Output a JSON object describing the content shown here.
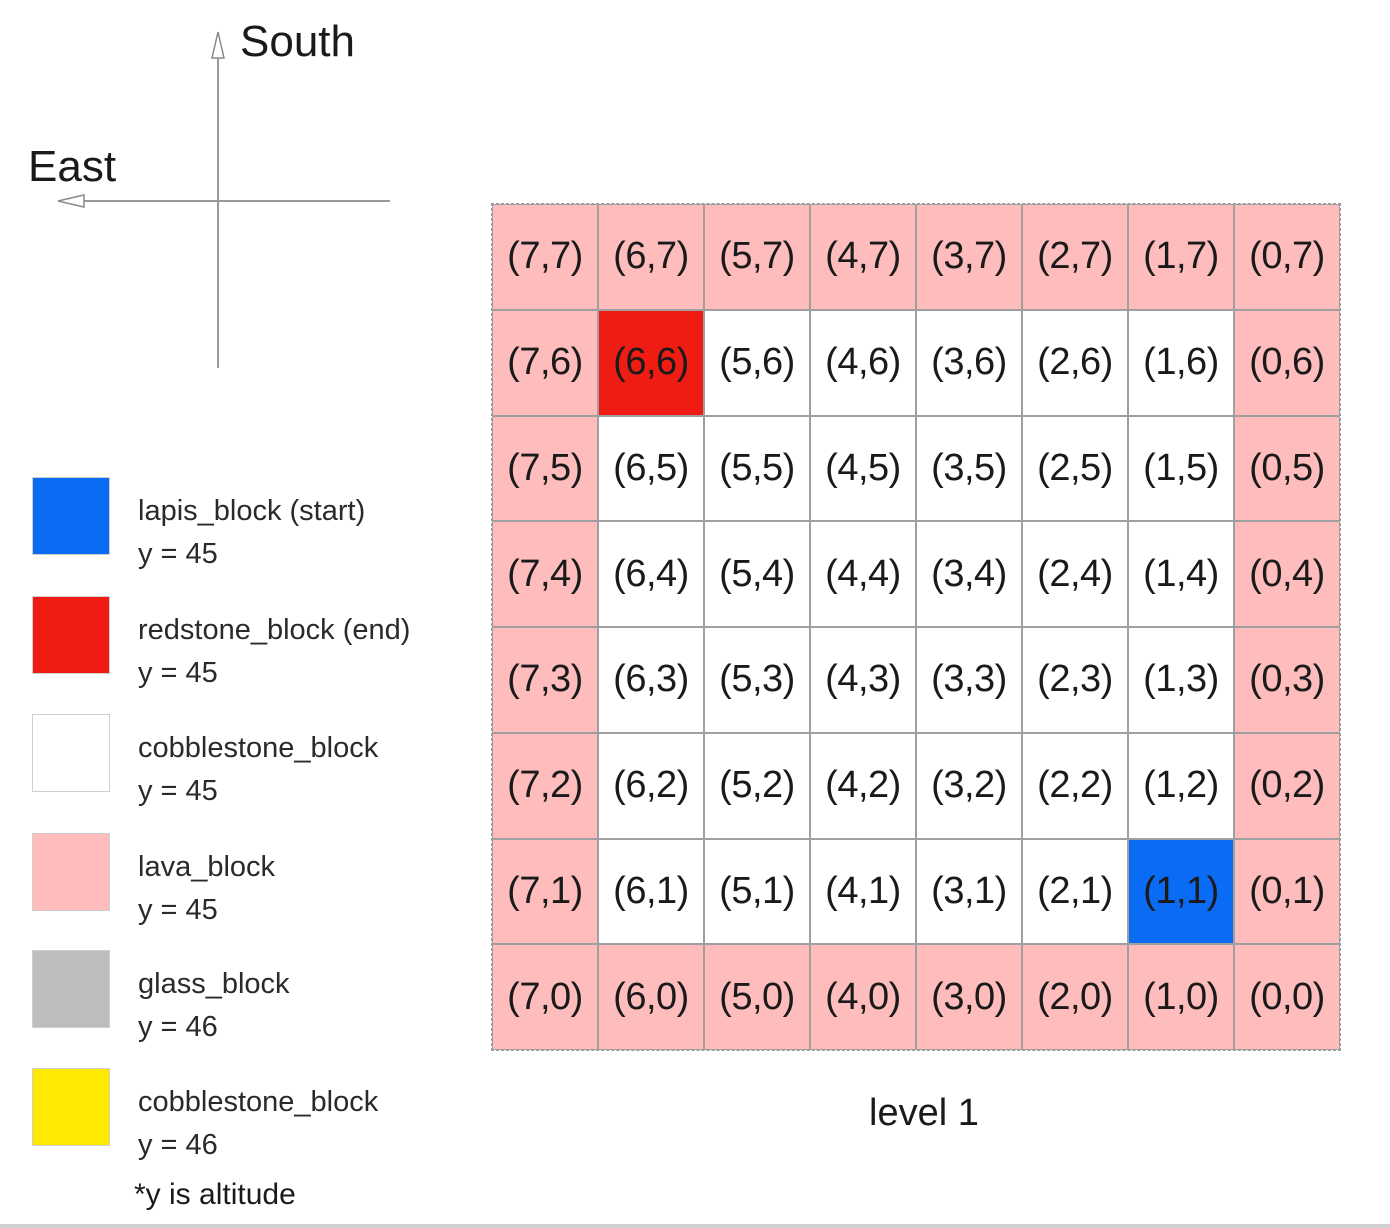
{
  "compass": {
    "south_label": "South",
    "east_label": "East"
  },
  "legend": {
    "items": [
      {
        "name": "lapis_block (start)",
        "altitude": "y = 45",
        "color": "#0a6cf5"
      },
      {
        "name": "redstone_block (end)",
        "altitude": "y = 45",
        "color": "#ee1c12"
      },
      {
        "name": "cobblestone_block",
        "altitude": "y = 45",
        "color": "#ffffff"
      },
      {
        "name": "lava_block",
        "altitude": "y = 45",
        "color": "#ffbcbd"
      },
      {
        "name": "glass_block",
        "altitude": "y = 46",
        "color": "#bdbdbd"
      },
      {
        "name": "cobblestone_block",
        "altitude": "y = 46",
        "color": "#ffe900"
      }
    ],
    "note": "*y is altitude"
  },
  "grid": {
    "caption": "level 1",
    "colors": {
      "lava": "#ffbcbd",
      "cobblestone": "#ffffff",
      "lapis": "#0a6cf5",
      "redstone": "#ee1c12"
    },
    "rows": [
      [
        {
          "label": "(7,7)",
          "block": "lava"
        },
        {
          "label": "(6,7)",
          "block": "lava"
        },
        {
          "label": "(5,7)",
          "block": "lava"
        },
        {
          "label": "(4,7)",
          "block": "lava"
        },
        {
          "label": "(3,7)",
          "block": "lava"
        },
        {
          "label": "(2,7)",
          "block": "lava"
        },
        {
          "label": "(1,7)",
          "block": "lava"
        },
        {
          "label": "(0,7)",
          "block": "lava"
        }
      ],
      [
        {
          "label": "(7,6)",
          "block": "lava"
        },
        {
          "label": "(6,6)",
          "block": "redstone"
        },
        {
          "label": "(5,6)",
          "block": "cobblestone"
        },
        {
          "label": "(4,6)",
          "block": "cobblestone"
        },
        {
          "label": "(3,6)",
          "block": "cobblestone"
        },
        {
          "label": "(2,6)",
          "block": "cobblestone"
        },
        {
          "label": "(1,6)",
          "block": "cobblestone"
        },
        {
          "label": "(0,6)",
          "block": "lava"
        }
      ],
      [
        {
          "label": "(7,5)",
          "block": "lava"
        },
        {
          "label": "(6,5)",
          "block": "cobblestone"
        },
        {
          "label": "(5,5)",
          "block": "cobblestone"
        },
        {
          "label": "(4,5)",
          "block": "cobblestone"
        },
        {
          "label": "(3,5)",
          "block": "cobblestone"
        },
        {
          "label": "(2,5)",
          "block": "cobblestone"
        },
        {
          "label": "(1,5)",
          "block": "cobblestone"
        },
        {
          "label": "(0,5)",
          "block": "lava"
        }
      ],
      [
        {
          "label": "(7,4)",
          "block": "lava"
        },
        {
          "label": "(6,4)",
          "block": "cobblestone"
        },
        {
          "label": "(5,4)",
          "block": "cobblestone"
        },
        {
          "label": "(4,4)",
          "block": "cobblestone"
        },
        {
          "label": "(3,4)",
          "block": "cobblestone"
        },
        {
          "label": "(2,4)",
          "block": "cobblestone"
        },
        {
          "label": "(1,4)",
          "block": "cobblestone"
        },
        {
          "label": "(0,4)",
          "block": "lava"
        }
      ],
      [
        {
          "label": "(7,3)",
          "block": "lava"
        },
        {
          "label": "(6,3)",
          "block": "cobblestone"
        },
        {
          "label": "(5,3)",
          "block": "cobblestone"
        },
        {
          "label": "(4,3)",
          "block": "cobblestone"
        },
        {
          "label": "(3,3)",
          "block": "cobblestone"
        },
        {
          "label": "(2,3)",
          "block": "cobblestone"
        },
        {
          "label": "(1,3)",
          "block": "cobblestone"
        },
        {
          "label": "(0,3)",
          "block": "lava"
        }
      ],
      [
        {
          "label": "(7,2)",
          "block": "lava"
        },
        {
          "label": "(6,2)",
          "block": "cobblestone"
        },
        {
          "label": "(5,2)",
          "block": "cobblestone"
        },
        {
          "label": "(4,2)",
          "block": "cobblestone"
        },
        {
          "label": "(3,2)",
          "block": "cobblestone"
        },
        {
          "label": "(2,2)",
          "block": "cobblestone"
        },
        {
          "label": "(1,2)",
          "block": "cobblestone"
        },
        {
          "label": "(0,2)",
          "block": "lava"
        }
      ],
      [
        {
          "label": "(7,1)",
          "block": "lava"
        },
        {
          "label": "(6,1)",
          "block": "cobblestone"
        },
        {
          "label": "(5,1)",
          "block": "cobblestone"
        },
        {
          "label": "(4,1)",
          "block": "cobblestone"
        },
        {
          "label": "(3,1)",
          "block": "cobblestone"
        },
        {
          "label": "(2,1)",
          "block": "cobblestone"
        },
        {
          "label": "(1,1)",
          "block": "lapis"
        },
        {
          "label": "(0,1)",
          "block": "lava"
        }
      ],
      [
        {
          "label": "(7,0)",
          "block": "lava"
        },
        {
          "label": "(6,0)",
          "block": "lava"
        },
        {
          "label": "(5,0)",
          "block": "lava"
        },
        {
          "label": "(4,0)",
          "block": "lava"
        },
        {
          "label": "(3,0)",
          "block": "lava"
        },
        {
          "label": "(2,0)",
          "block": "lava"
        },
        {
          "label": "(1,0)",
          "block": "lava"
        },
        {
          "label": "(0,0)",
          "block": "lava"
        }
      ]
    ]
  }
}
